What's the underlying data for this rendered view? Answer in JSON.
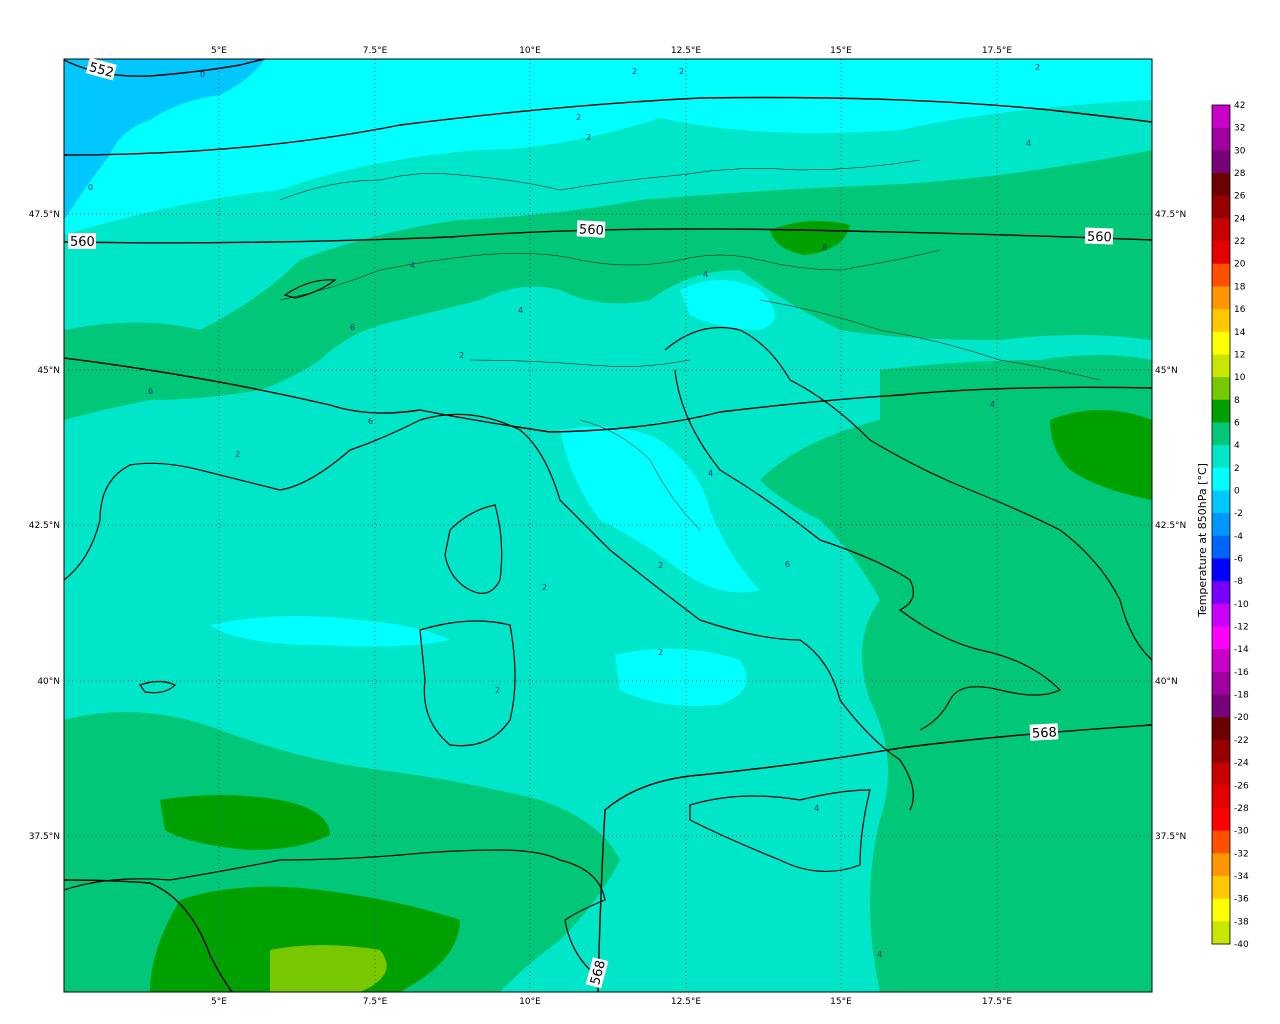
{
  "colorbar": {
    "title": "Temperature at 850hPa [°C]",
    "levels": [
      "42",
      "32",
      "30",
      "28",
      "26",
      "24",
      "22",
      "20",
      "18",
      "16",
      "14",
      "12",
      "10",
      "8",
      "6",
      "4",
      "2",
      "0",
      "-2",
      "-4",
      "-6",
      "-8",
      "-10",
      "-12",
      "-14",
      "-16",
      "-18",
      "-20",
      "-22",
      "-24",
      "-26",
      "-28",
      "-30",
      "-32",
      "-34",
      "-36",
      "-38",
      "-40"
    ],
    "colors": [
      "#c800c8",
      "#a000a0",
      "#780078",
      "#6a0000",
      "#960000",
      "#c80000",
      "#e60000",
      "#ff5000",
      "#ff9600",
      "#ffc800",
      "#ffff00",
      "#c8e600",
      "#78c800",
      "#00a000",
      "#00c878",
      "#00e6c8",
      "#00ffff",
      "#00c8ff",
      "#0096ff",
      "#0064ff",
      "#0000ff",
      "#7800ff",
      "#c800ff",
      "#ff00ff",
      "#c800c8",
      "#a000a0",
      "#780078",
      "#6a0000",
      "#960000",
      "#c80000",
      "#e60000",
      "#ff0000",
      "#ff5000",
      "#ff9600",
      "#ffc800",
      "#ffff00",
      "#c8e600"
    ]
  },
  "axes": {
    "lon_ticks": [
      "5°E",
      "7.5°E",
      "10°E",
      "12.5°E",
      "15°E",
      "17.5°E"
    ],
    "lat_ticks": [
      "47.5°N",
      "45°N",
      "42.5°N",
      "40°N",
      "37.5°N"
    ]
  },
  "isohypse_labels": [
    "552",
    "560",
    "560",
    "560",
    "568",
    "568"
  ],
  "temp_labels": [
    "0",
    "0",
    "2",
    "2",
    "2",
    "2",
    "4",
    "4",
    "2",
    "6",
    "6",
    "6",
    "2",
    "4",
    "4",
    "2",
    "2",
    "2",
    "4",
    "4",
    "6",
    "6",
    "4",
    "2",
    "4",
    "2"
  ],
  "colors": {
    "t_0_2": "#00ffff",
    "t_2_4": "#00e6c8",
    "t_4_6": "#00c878",
    "t_6_8": "#00a000",
    "t_8_10": "#78c800",
    "t_m2_0": "#00c8ff",
    "iso_line": "#000000"
  }
}
